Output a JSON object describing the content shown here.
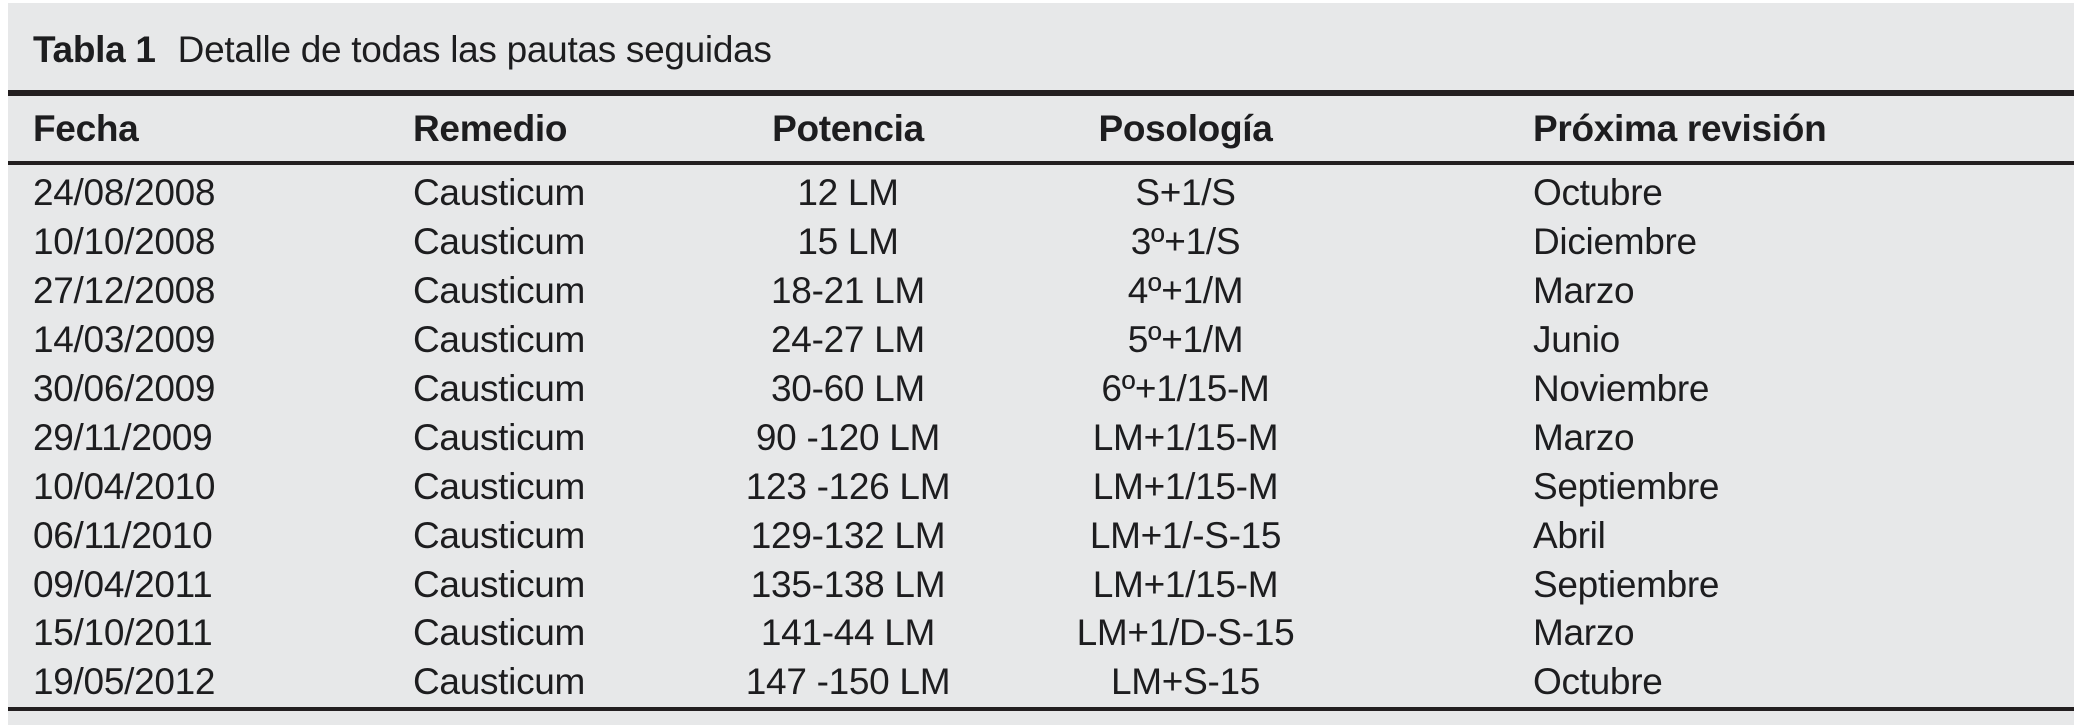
{
  "caption": {
    "label": "Tabla 1",
    "text": "Detalle de todas las pautas seguidas"
  },
  "table": {
    "columns": [
      {
        "key": "fecha",
        "label": "Fecha",
        "align": "left"
      },
      {
        "key": "remedio",
        "label": "Remedio",
        "align": "left"
      },
      {
        "key": "potencia",
        "label": "Potencia",
        "align": "center"
      },
      {
        "key": "posologia",
        "label": "Posología",
        "align": "center"
      },
      {
        "key": "proxima-revision",
        "label": "Próxima revisión",
        "align": "left"
      }
    ],
    "rows": [
      [
        "24/08/2008",
        "Causticum",
        "12 LM",
        "S+1/S",
        "Octubre"
      ],
      [
        "10/10/2008",
        "Causticum",
        "15 LM",
        "3º+1/S",
        "Diciembre"
      ],
      [
        "27/12/2008",
        "Causticum",
        "18-21 LM",
        "4º+1/M",
        "Marzo"
      ],
      [
        "14/03/2009",
        "Causticum",
        "24-27 LM",
        "5º+1/M",
        "Junio"
      ],
      [
        "30/06/2009",
        "Causticum",
        "30-60 LM",
        "6º+1/15-M",
        "Noviembre"
      ],
      [
        "29/11/2009",
        "Causticum",
        "90 -120 LM",
        "LM+1/15-M",
        "Marzo"
      ],
      [
        "10/04/2010",
        "Causticum",
        "123 -126 LM",
        "LM+1/15-M",
        "Septiembre"
      ],
      [
        "06/11/2010",
        "Causticum",
        "129-132 LM",
        "LM+1/-S-15",
        "Abril"
      ],
      [
        "09/04/2011",
        "Causticum",
        "135-138 LM",
        "LM+1/15-M",
        "Septiembre"
      ],
      [
        "15/10/2011",
        "Causticum",
        "141-44 LM",
        "LM+1/D-S-15",
        "Marzo"
      ],
      [
        "19/05/2012",
        "Causticum",
        "147 -150 LM",
        "LM+S-15",
        "Octubre"
      ]
    ]
  },
  "colors": {
    "panel_background": "#e7e8e9",
    "rule": "#231f20",
    "text": "#1d1d1f",
    "page_background": "#ffffff"
  }
}
